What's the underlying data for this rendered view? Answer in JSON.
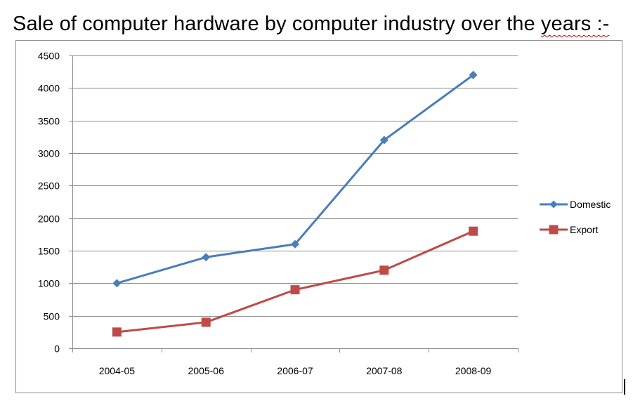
{
  "page": {
    "title_main": "Sale of computer hardware by computer industry over the ",
    "title_end": "years :-"
  },
  "chart_data": {
    "type": "line",
    "categories": [
      "2004-05",
      "2005-06",
      "2006-07",
      "2007-08",
      "2008-09"
    ],
    "series": [
      {
        "name": "Domestic",
        "values": [
          1000,
          1400,
          1600,
          3200,
          4200
        ],
        "color": "#4a7ebb",
        "marker": "diamond"
      },
      {
        "name": "Export",
        "values": [
          250,
          400,
          900,
          1200,
          1800
        ],
        "color": "#be4b48",
        "marker": "square"
      }
    ],
    "ylim": [
      0,
      4500
    ],
    "yticks": [
      0,
      500,
      1000,
      1500,
      2000,
      2500,
      3000,
      3500,
      4000,
      4500
    ],
    "grid": "horizontal",
    "legend": "right"
  }
}
